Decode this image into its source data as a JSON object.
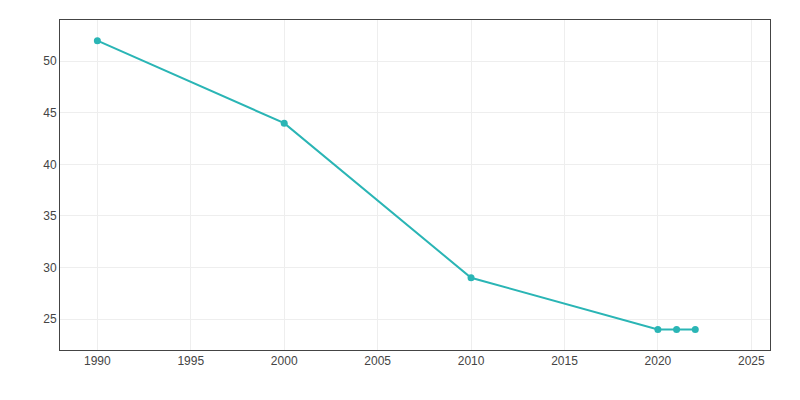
{
  "chart_data": {
    "type": "line",
    "x": [
      1990,
      2000,
      2010,
      2020,
      2021,
      2022
    ],
    "values": [
      52,
      44,
      29,
      24,
      24,
      24
    ],
    "color": "#2ab5b5",
    "marker": "circle",
    "xlim": [
      1988,
      2026
    ],
    "ylim": [
      22,
      54
    ],
    "xticks": [
      1990,
      1995,
      2000,
      2005,
      2010,
      2015,
      2020,
      2025
    ],
    "yticks": [
      25,
      30,
      35,
      40,
      45,
      50
    ],
    "grid": true
  }
}
